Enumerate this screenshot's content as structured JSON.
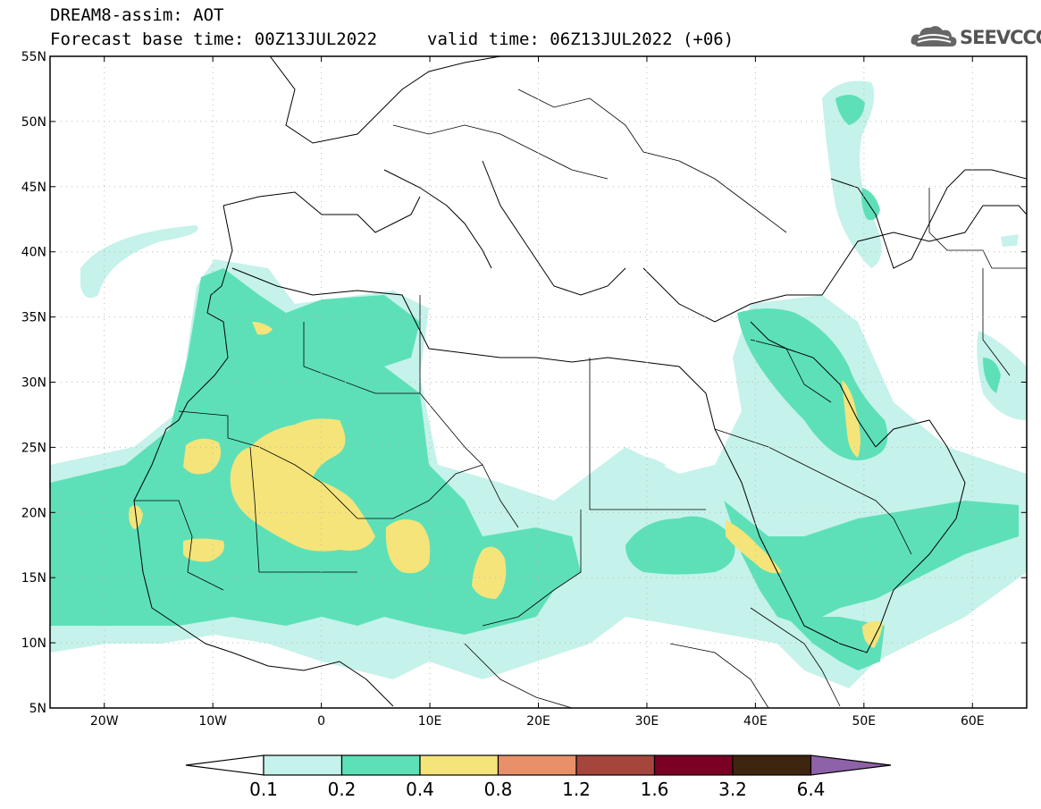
{
  "header": {
    "title": "DREAM8-assim: AOT",
    "base_time": "Forecast base time: 00Z13JUL2022",
    "valid_time": "valid time: 06Z13JUL2022 (+06)"
  },
  "logo": {
    "text": "SEEVCCC",
    "icon": "cloud-icon"
  },
  "map": {
    "lon_range": [
      -25,
      65
    ],
    "lat_range": [
      5,
      55
    ],
    "lat_ticks": [
      "55N",
      "50N",
      "45N",
      "40N",
      "35N",
      "30N",
      "25N",
      "20N",
      "15N",
      "10N",
      "5N"
    ],
    "lat_values": [
      55,
      50,
      45,
      40,
      35,
      30,
      25,
      20,
      15,
      10,
      5
    ],
    "lon_ticks": [
      "20W",
      "10W",
      "0",
      "10E",
      "20E",
      "30E",
      "40E",
      "50E",
      "60E"
    ],
    "lon_values": [
      -20,
      -10,
      0,
      10,
      20,
      30,
      40,
      50,
      60
    ]
  },
  "colorbar": {
    "labels": [
      "0.1",
      "0.2",
      "0.4",
      "0.8",
      "1.2",
      "1.6",
      "3.2",
      "6.4"
    ],
    "colors": [
      "#c5f2ea",
      "#5de0b8",
      "#f5e47a",
      "#e8906a",
      "#a5463c",
      "#7a0024",
      "#3e2510",
      "#8e62a8"
    ]
  }
}
